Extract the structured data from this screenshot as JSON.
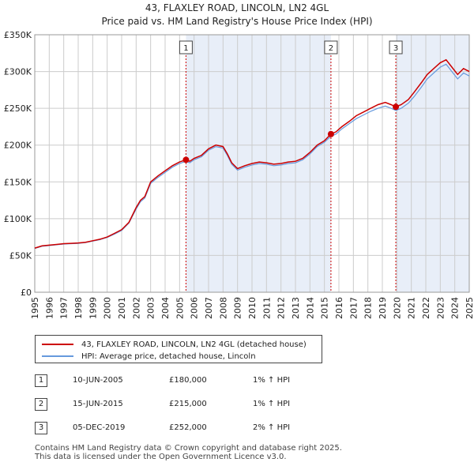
{
  "chart_data": {
    "type": "line",
    "title": "43, FLAXLEY ROAD, LINCOLN, LN2 4GL",
    "subtitle": "Price paid vs. HM Land Registry's House Price Index (HPI)",
    "xlabel": "",
    "ylabel": "",
    "xlim": [
      1995.0,
      2025.0
    ],
    "ylim": [
      0,
      350000
    ],
    "yticks": [
      0,
      50000,
      100000,
      150000,
      200000,
      250000,
      300000,
      350000
    ],
    "ytick_labels": [
      "£0",
      "£50K",
      "£100K",
      "£150K",
      "£200K",
      "£250K",
      "£300K",
      "£350K"
    ],
    "xticks": [
      1995,
      1996,
      1997,
      1998,
      1999,
      2000,
      2001,
      2002,
      2003,
      2004,
      2005,
      2006,
      2007,
      2008,
      2009,
      2010,
      2011,
      2012,
      2013,
      2014,
      2015,
      2016,
      2017,
      2018,
      2019,
      2020,
      2021,
      2022,
      2023,
      2024,
      2025
    ],
    "xtick_labels": [
      "1995",
      "1996",
      "1997",
      "1998",
      "1999",
      "2000",
      "2001",
      "2002",
      "2003",
      "2004",
      "2005",
      "2006",
      "2007",
      "2008",
      "2009",
      "2010",
      "2011",
      "2012",
      "2013",
      "2014",
      "2015",
      "2016",
      "2017",
      "2018",
      "2019",
      "2020",
      "2021",
      "2022",
      "2023",
      "2024",
      "2025"
    ],
    "grid": true,
    "legend_position": "below",
    "series": [
      {
        "name": "43, FLAXLEY ROAD, LINCOLN, LN2 4GL (detached house)",
        "color": "#cc0000",
        "x": [
          1995.0,
          1995.5,
          1996.0,
          1996.5,
          1997.0,
          1997.5,
          1998.0,
          1998.5,
          1999.0,
          1999.5,
          2000.0,
          2000.5,
          2001.0,
          2001.5,
          2002.0,
          2002.3,
          2002.6,
          2002.8,
          2003.0,
          2003.5,
          2004.0,
          2004.5,
          2005.0,
          2005.44,
          2005.7,
          2006.0,
          2006.5,
          2007.0,
          2007.5,
          2008.0,
          2008.3,
          2008.6,
          2009.0,
          2009.5,
          2010.0,
          2010.5,
          2011.0,
          2011.5,
          2012.0,
          2012.5,
          2013.0,
          2013.5,
          2014.0,
          2014.5,
          2015.0,
          2015.45,
          2015.8,
          2016.2,
          2016.7,
          2017.2,
          2017.7,
          2018.2,
          2018.7,
          2019.2,
          2019.6,
          2019.93,
          2020.3,
          2020.8,
          2021.2,
          2021.7,
          2022.1,
          2022.6,
          2023.0,
          2023.4,
          2023.8,
          2024.2,
          2024.6,
          2025.0
        ],
        "values": [
          60000,
          63000,
          64000,
          65000,
          66000,
          66500,
          67000,
          68000,
          70000,
          72000,
          75000,
          80000,
          85000,
          95000,
          115000,
          125000,
          130000,
          140000,
          150000,
          158000,
          165000,
          172000,
          177000,
          180000,
          178000,
          182000,
          186000,
          195000,
          200000,
          198000,
          188000,
          176000,
          168000,
          172000,
          175000,
          177000,
          176000,
          174000,
          175000,
          177000,
          178000,
          182000,
          190000,
          200000,
          206000,
          215000,
          218000,
          225000,
          232000,
          240000,
          245000,
          250000,
          255000,
          258000,
          255000,
          252000,
          255000,
          262000,
          272000,
          285000,
          296000,
          305000,
          312000,
          316000,
          306000,
          296000,
          304000,
          300000
        ]
      },
      {
        "name": "HPI: Average price, detached house, Lincoln",
        "color": "#6699dd",
        "x": [
          1995.0,
          1995.5,
          1996.0,
          1996.5,
          1997.0,
          1997.5,
          1998.0,
          1998.5,
          1999.0,
          1999.5,
          2000.0,
          2000.5,
          2001.0,
          2001.5,
          2002.0,
          2002.3,
          2002.6,
          2002.8,
          2003.0,
          2003.5,
          2004.0,
          2004.5,
          2005.0,
          2005.44,
          2005.7,
          2006.0,
          2006.5,
          2007.0,
          2007.5,
          2008.0,
          2008.3,
          2008.6,
          2009.0,
          2009.5,
          2010.0,
          2010.5,
          2011.0,
          2011.5,
          2012.0,
          2012.5,
          2013.0,
          2013.5,
          2014.0,
          2014.5,
          2015.0,
          2015.45,
          2015.8,
          2016.2,
          2016.7,
          2017.2,
          2017.7,
          2018.2,
          2018.7,
          2019.2,
          2019.6,
          2019.93,
          2020.3,
          2020.8,
          2021.2,
          2021.7,
          2022.1,
          2022.6,
          2023.0,
          2023.4,
          2023.8,
          2024.2,
          2024.6,
          2025.0
        ],
        "values": [
          59500,
          62500,
          63500,
          64500,
          65500,
          66000,
          66500,
          67500,
          69500,
          71500,
          74500,
          79000,
          84000,
          94000,
          113000,
          123000,
          128000,
          138000,
          148000,
          156000,
          163000,
          170000,
          175000,
          178000,
          176000,
          180000,
          184000,
          193000,
          198000,
          196000,
          186000,
          174000,
          166000,
          170000,
          173000,
          175000,
          174000,
          172000,
          173000,
          175000,
          176000,
          180000,
          188000,
          198000,
          204000,
          212000,
          215000,
          222000,
          229000,
          236000,
          241000,
          246000,
          250000,
          253000,
          250000,
          247000,
          250000,
          257000,
          266000,
          279000,
          290000,
          299000,
          306000,
          310000,
          300000,
          290000,
          298000,
          294000
        ]
      }
    ],
    "annotations": [
      {
        "label": "1",
        "x": 2005.44,
        "value": 180000
      },
      {
        "label": "2",
        "x": 2015.45,
        "value": 215000
      },
      {
        "label": "3",
        "x": 2019.93,
        "value": 252000
      }
    ]
  },
  "legend": {
    "property_label": "43, FLAXLEY ROAD, LINCOLN, LN2 4GL (detached house)",
    "hpi_label": "HPI: Average price, detached house, Lincoln",
    "property_color": "#cc0000",
    "hpi_color": "#6699dd"
  },
  "sales": [
    {
      "num": "1",
      "date": "10-JUN-2005",
      "price": "£180,000",
      "hpi": "1% ↑ HPI"
    },
    {
      "num": "2",
      "date": "15-JUN-2015",
      "price": "£215,000",
      "hpi": "1% ↑ HPI"
    },
    {
      "num": "3",
      "date": "05-DEC-2019",
      "price": "£252,000",
      "hpi": "2% ↑ HPI"
    }
  ],
  "footer": {
    "line1": "Contains HM Land Registry data © Crown copyright and database right 2025.",
    "line2": "This data is licensed under the Open Government Licence v3.0."
  },
  "colors": {
    "shade": "#e8eef8",
    "grid": "#cccccc",
    "marker_line": "#cc0000"
  }
}
